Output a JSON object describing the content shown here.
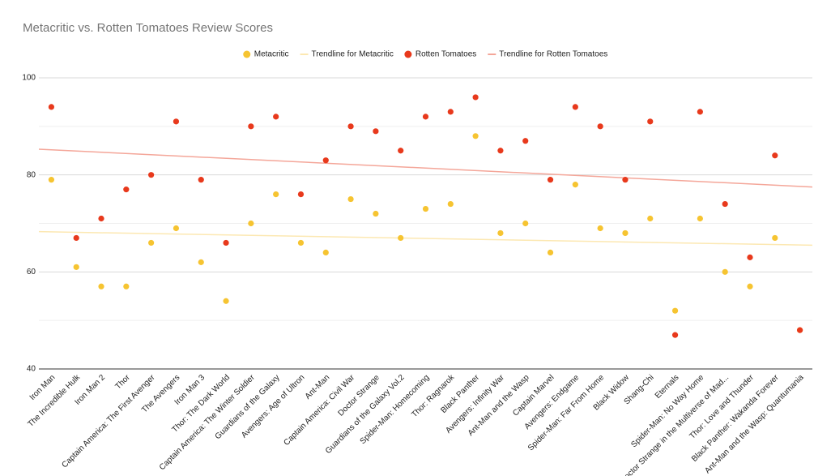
{
  "chart_data": {
    "type": "scatter",
    "title": "Metacritic vs. Rotten Tomatoes Review Scores",
    "categories": [
      "Iron Man",
      "The Incredible Hulk",
      "Iron Man 2",
      "Thor",
      "Captain America: The First Avenger",
      "The Avengers",
      "Iron Man 3",
      "Thor: The Dark World",
      "Captain America: The Winter Soldier",
      "Guardians of the Galaxy",
      "Avengers: Age of Ultron",
      "Ant-Man",
      "Captain America: Civil War",
      "Doctor Strange",
      "Guardians of the Galaxy Vol.2",
      "Spider-Man: Homecoming",
      "Thor: Ragnarok",
      "Black Panther",
      "Avengers: Infinity War",
      "Ant-Man and the Wasp",
      "Captain Marvel",
      "Avengers: Endgame",
      "Spider-Man: Far From Home",
      "Black Widow",
      "Shang-Chi",
      "Eternals",
      "Spider-Man: No Way Home",
      "Doctor Strange in the Multiverse of Mad...",
      "Thor: Love and Thunder",
      "Black Panther: Wakanda Forever",
      "Ant-Man and the Wasp: Quantumania"
    ],
    "series": [
      {
        "name": "Metacritic",
        "color": "#f6c431",
        "values": [
          79,
          61,
          57,
          57,
          66,
          69,
          62,
          54,
          70,
          76,
          66,
          64,
          75,
          72,
          67,
          73,
          74,
          88,
          68,
          70,
          64,
          78,
          69,
          68,
          71,
          52,
          71,
          60,
          57,
          67,
          48
        ],
        "trendline": {
          "name": "Trendline for Metacritic",
          "color": "#fce8b2",
          "values": [
            68.3,
            65.5
          ]
        }
      },
      {
        "name": "Rotten Tomatoes",
        "color": "#e8391c",
        "values": [
          94,
          67,
          71,
          77,
          80,
          91,
          79,
          66,
          90,
          92,
          76,
          83,
          90,
          89,
          85,
          92,
          93,
          96,
          85,
          87,
          79,
          94,
          90,
          79,
          91,
          47,
          93,
          74,
          63,
          84,
          48
        ],
        "trendline": {
          "name": "Trendline for Rotten Tomatoes",
          "color": "#f4a699",
          "values": [
            85.3,
            77.5
          ]
        }
      }
    ],
    "ylim": [
      40,
      100
    ],
    "yticks": [
      40,
      60,
      80,
      100
    ],
    "minor_gridlines": [
      50,
      70,
      90
    ],
    "grid": true,
    "legend": "top"
  }
}
